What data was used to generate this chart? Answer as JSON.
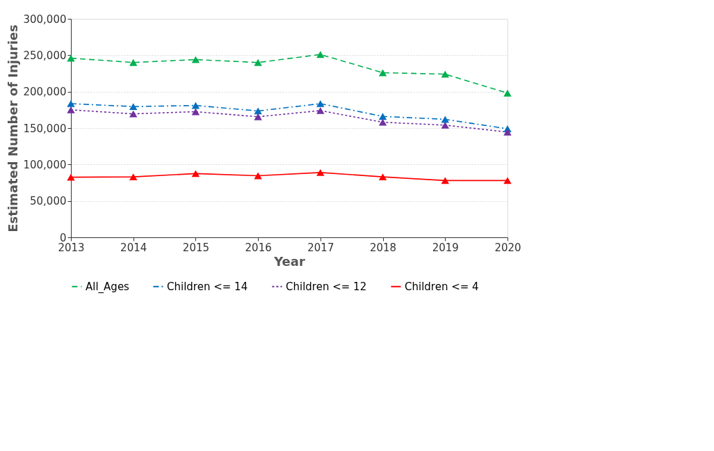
{
  "chart_data": {
    "type": "line",
    "xlabel": "Year",
    "ylabel": "Estimated Number of Injuries",
    "x": [
      2013,
      2014,
      2015,
      2016,
      2017,
      2018,
      2019,
      2020
    ],
    "xlim": [
      2013,
      2020
    ],
    "xticks": [
      2013,
      2014,
      2015,
      2016,
      2017,
      2018,
      2019,
      2020
    ],
    "ylim": [
      0,
      300000
    ],
    "yticks": [
      {
        "value": 0,
        "label": "0"
      },
      {
        "value": 50000,
        "label": "50,000"
      },
      {
        "value": 100000,
        "label": "100,000"
      },
      {
        "value": 150000,
        "label": "150,000"
      },
      {
        "value": 200000,
        "label": "200,000"
      },
      {
        "value": 250000,
        "label": "250,000"
      },
      {
        "value": 300000,
        "label": "300,000"
      }
    ],
    "grid": "y",
    "legend": "bottom",
    "marker": "triangle",
    "series": [
      {
        "name": "All_Ages",
        "color": "#00b050",
        "line_style": "dashed",
        "values": [
          246000,
          240000,
          244000,
          240000,
          251000,
          226000,
          224000,
          198000
        ]
      },
      {
        "name": "Children <= 14",
        "color": "#0070c0",
        "line_style": "dashdot",
        "values": [
          183500,
          179500,
          181000,
          173500,
          183500,
          166000,
          162000,
          149000
        ]
      },
      {
        "name": "Children <= 12",
        "color": "#7030a0",
        "line_style": "dotted",
        "values": [
          175000,
          169500,
          172500,
          165500,
          174000,
          158000,
          154000,
          144500
        ]
      },
      {
        "name": "Children <= 4",
        "color": "#ff0000",
        "line_style": "solid",
        "values": [
          82500,
          83000,
          87500,
          84500,
          89000,
          83000,
          78000,
          78000
        ]
      }
    ]
  }
}
